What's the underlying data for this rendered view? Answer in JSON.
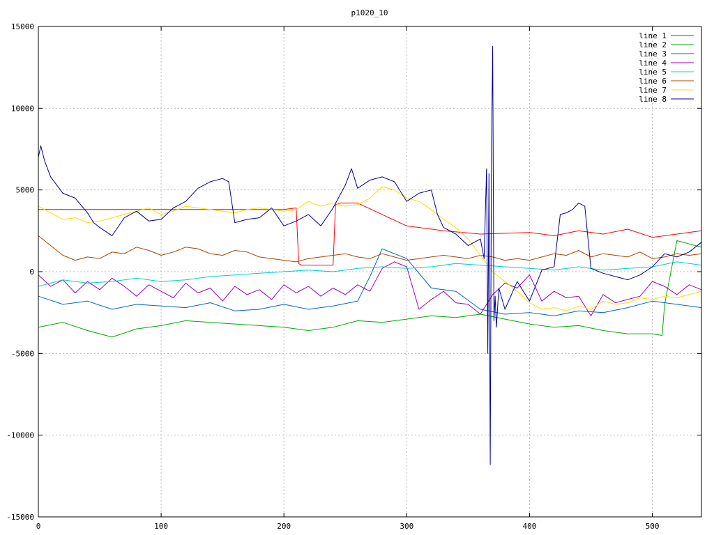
{
  "chart_data": {
    "type": "line",
    "title": "p1020_10",
    "xlabel": "",
    "ylabel": "",
    "xlim": [
      0,
      540
    ],
    "ylim": [
      -15000,
      15000
    ],
    "xticks": [
      0,
      100,
      200,
      300,
      400,
      500
    ],
    "yticks": [
      -15000,
      -10000,
      -5000,
      0,
      5000,
      10000,
      15000
    ],
    "grid": true,
    "legend_position": "top-right",
    "series": [
      {
        "name": "line 1",
        "color": "#ff0000",
        "x": [
          0,
          40,
          80,
          120,
          160,
          200,
          210,
          212,
          214,
          240,
          242,
          246,
          260,
          280,
          300,
          330,
          360,
          400,
          420,
          440,
          460,
          480,
          500,
          520,
          540
        ],
        "y": [
          3800,
          3800,
          3800,
          3800,
          3800,
          3800,
          3900,
          500,
          400,
          400,
          4100,
          4200,
          4200,
          3500,
          2800,
          2500,
          2300,
          2400,
          2200,
          2500,
          2300,
          2600,
          2100,
          2300,
          2500
        ]
      },
      {
        "name": "line 2",
        "color": "#00aa00",
        "x": [
          0,
          20,
          40,
          60,
          80,
          100,
          120,
          140,
          160,
          180,
          200,
          220,
          240,
          260,
          280,
          300,
          320,
          340,
          360,
          380,
          400,
          420,
          440,
          460,
          480,
          500,
          508,
          510,
          520,
          540
        ],
        "y": [
          -3400,
          -3100,
          -3600,
          -4000,
          -3500,
          -3300,
          -3000,
          -3100,
          -3200,
          -3300,
          -3400,
          -3600,
          -3400,
          -3000,
          -3100,
          -2900,
          -2700,
          -2800,
          -2600,
          -2900,
          -3200,
          -3400,
          -3300,
          -3600,
          -3800,
          -3800,
          -3900,
          -2000,
          1900,
          1500
        ]
      },
      {
        "name": "line 3",
        "color": "#0066cc",
        "x": [
          0,
          20,
          40,
          60,
          80,
          100,
          120,
          140,
          160,
          180,
          200,
          220,
          240,
          260,
          270,
          280,
          300,
          320,
          340,
          360,
          380,
          400,
          420,
          440,
          460,
          480,
          500,
          520,
          540
        ],
        "y": [
          -1500,
          -2000,
          -1800,
          -2300,
          -2000,
          -2100,
          -2200,
          -1900,
          -2400,
          -2300,
          -2000,
          -2300,
          -2100,
          -1800,
          -300,
          1400,
          800,
          -1000,
          -1200,
          -2300,
          -2600,
          -2500,
          -2700,
          -2400,
          -2500,
          -2200,
          -1800,
          -2000,
          -2200
        ]
      },
      {
        "name": "line 4",
        "color": "#9900cc",
        "x": [
          0,
          10,
          20,
          30,
          40,
          50,
          60,
          70,
          80,
          90,
          100,
          110,
          120,
          130,
          140,
          150,
          160,
          170,
          180,
          190,
          200,
          210,
          220,
          230,
          240,
          250,
          260,
          270,
          280,
          290,
          300,
          310,
          320,
          330,
          340,
          350,
          360,
          370,
          380,
          390,
          400,
          410,
          420,
          430,
          440,
          450,
          460,
          470,
          480,
          490,
          500,
          510,
          520,
          530,
          540
        ],
        "y": [
          -200,
          -900,
          -500,
          -1300,
          -600,
          -1100,
          -400,
          -900,
          -1500,
          -800,
          -1200,
          -1600,
          -700,
          -1300,
          -1000,
          -1800,
          -900,
          -1400,
          -1100,
          -1700,
          -800,
          -1300,
          -900,
          -1500,
          -1000,
          -1400,
          -800,
          -1200,
          200,
          600,
          300,
          -2300,
          -1700,
          -1200,
          -1900,
          -2000,
          -2600,
          -1400,
          -700,
          -1000,
          -200,
          -1800,
          -1200,
          -1600,
          -1500,
          -2700,
          -1400,
          -1900,
          -1700,
          -1500,
          -600,
          -900,
          -1400,
          -800,
          -1100
        ]
      },
      {
        "name": "line 5",
        "color": "#00cccc",
        "x": [
          0,
          20,
          40,
          60,
          80,
          100,
          120,
          140,
          160,
          180,
          200,
          220,
          240,
          260,
          280,
          300,
          320,
          340,
          360,
          380,
          400,
          420,
          440,
          460,
          480,
          500,
          520,
          540
        ],
        "y": [
          -900,
          -500,
          -700,
          -600,
          -400,
          -600,
          -500,
          -300,
          -200,
          -100,
          0,
          100,
          0,
          200,
          300,
          200,
          300,
          500,
          400,
          300,
          200,
          100,
          300,
          100,
          200,
          300,
          600,
          400
        ]
      },
      {
        "name": "line 6",
        "color": "#aa4400",
        "x": [
          0,
          10,
          20,
          30,
          40,
          50,
          60,
          70,
          80,
          90,
          100,
          110,
          120,
          130,
          140,
          150,
          160,
          170,
          180,
          190,
          200,
          210,
          220,
          230,
          240,
          250,
          260,
          270,
          280,
          290,
          300,
          310,
          320,
          330,
          340,
          350,
          360,
          370,
          380,
          390,
          400,
          410,
          420,
          430,
          440,
          450,
          460,
          470,
          480,
          490,
          500,
          510,
          520,
          530,
          540
        ],
        "y": [
          2200,
          1600,
          1000,
          700,
          900,
          800,
          1200,
          1100,
          1500,
          1300,
          1000,
          1200,
          1500,
          1400,
          1100,
          1000,
          1300,
          1200,
          900,
          800,
          700,
          600,
          800,
          900,
          1000,
          1100,
          900,
          800,
          1100,
          900,
          700,
          800,
          900,
          1000,
          900,
          800,
          1000,
          900,
          700,
          800,
          700,
          900,
          1100,
          1000,
          1300,
          900,
          1100,
          1000,
          900,
          1200,
          800,
          900,
          1100,
          1000,
          1100
        ]
      },
      {
        "name": "line 7",
        "color": "#ffdd00",
        "x": [
          0,
          10,
          20,
          30,
          40,
          50,
          60,
          70,
          80,
          90,
          100,
          110,
          120,
          130,
          140,
          150,
          160,
          170,
          180,
          190,
          200,
          210,
          220,
          230,
          240,
          250,
          260,
          270,
          280,
          290,
          300,
          310,
          320,
          330,
          340,
          350,
          360,
          370,
          380,
          390,
          400,
          410,
          420,
          430,
          440,
          450,
          460,
          470,
          480,
          490,
          500,
          510,
          520,
          530,
          540
        ],
        "y": [
          4000,
          3600,
          3200,
          3300,
          3000,
          3100,
          3300,
          3500,
          3700,
          3900,
          3500,
          3700,
          4000,
          3900,
          3800,
          3700,
          3600,
          3800,
          3900,
          3800,
          3700,
          3800,
          4300,
          4000,
          4200,
          4000,
          4100,
          4500,
          5200,
          5000,
          4500,
          4300,
          3800,
          3200,
          2700,
          2000,
          1000,
          0,
          -600,
          -1200,
          -1900,
          -2300,
          -2200,
          -2400,
          -2100,
          -2300,
          -1800,
          -2000,
          -1900,
          -1600,
          -1700,
          -1500,
          -1600,
          -1400,
          -1200
        ]
      },
      {
        "name": "line 8",
        "color": "#000099",
        "x": [
          0,
          2,
          5,
          10,
          20,
          30,
          40,
          45,
          50,
          60,
          70,
          80,
          90,
          100,
          110,
          120,
          125,
          130,
          140,
          150,
          155,
          160,
          170,
          180,
          190,
          200,
          210,
          220,
          230,
          240,
          250,
          255,
          260,
          270,
          280,
          290,
          300,
          310,
          320,
          325,
          330,
          340,
          350,
          360,
          363,
          365,
          366,
          367,
          368,
          369,
          370,
          371,
          372,
          373,
          375,
          380,
          390,
          400,
          410,
          420,
          425,
          430,
          435,
          440,
          445,
          450,
          460,
          470,
          480,
          490,
          500,
          510,
          520,
          530,
          540
        ],
        "y": [
          7000,
          7700,
          6800,
          5800,
          4800,
          4500,
          3600,
          3000,
          2700,
          2200,
          3300,
          3700,
          3100,
          3200,
          3900,
          4300,
          4700,
          5100,
          5500,
          5700,
          5500,
          3000,
          3200,
          3300,
          3900,
          2800,
          3100,
          3500,
          2800,
          3900,
          5300,
          6300,
          5100,
          5600,
          5800,
          5500,
          4300,
          4800,
          5000,
          3500,
          2700,
          2300,
          1600,
          2000,
          800,
          6300,
          -5000,
          6000,
          -11800,
          7500,
          13800,
          -3000,
          -1500,
          -3400,
          -1000,
          -2300,
          -600,
          -1800,
          100,
          300,
          3500,
          3600,
          3800,
          4200,
          4000,
          200,
          -100,
          -300,
          -500,
          -200,
          300,
          1100,
          900,
          1200,
          1800
        ]
      }
    ]
  }
}
